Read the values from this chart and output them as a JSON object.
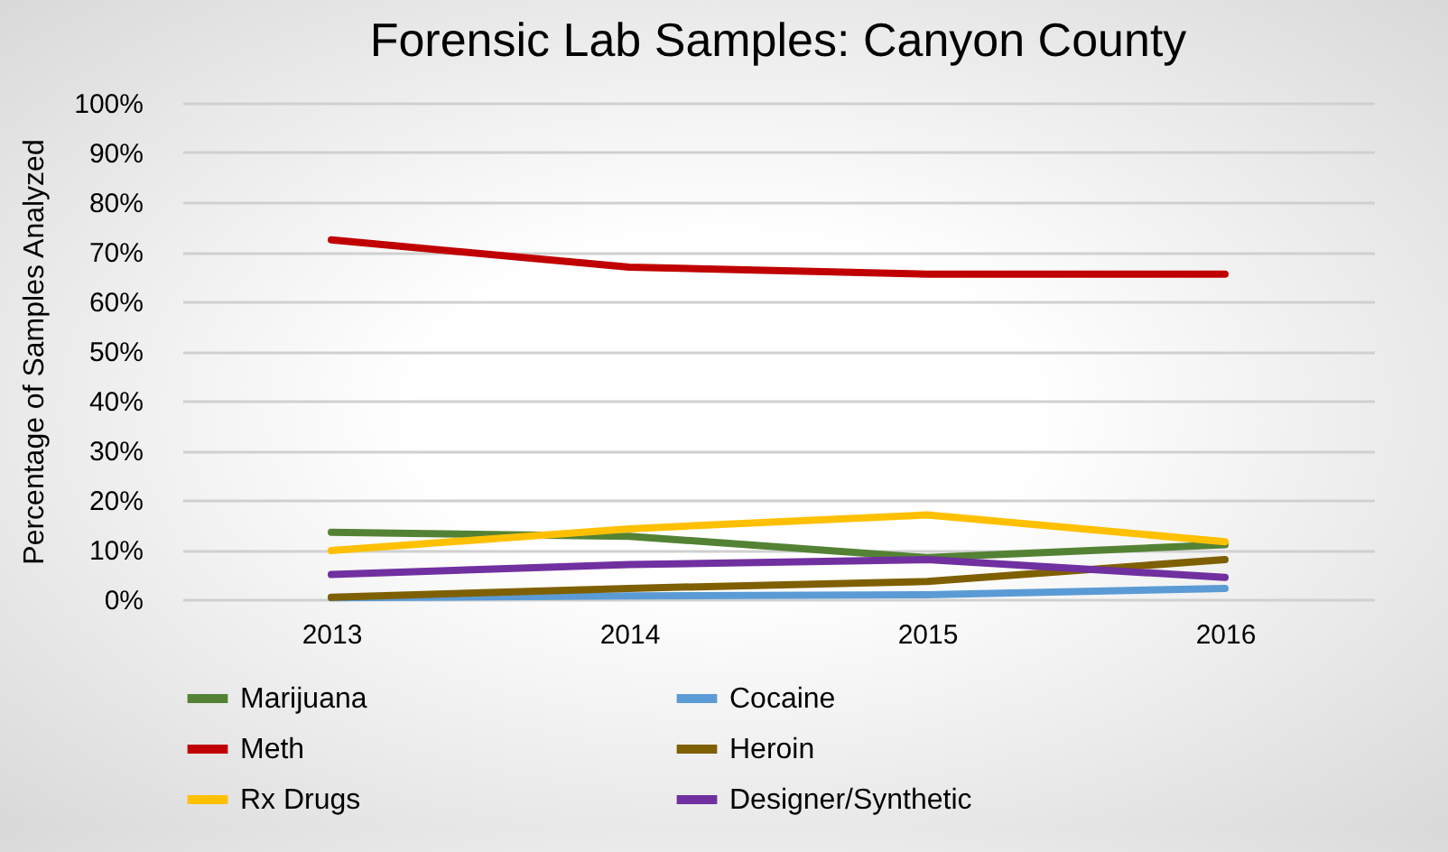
{
  "chart_data": {
    "type": "line",
    "title": "Forensic Lab Samples: Canyon County",
    "ylabel": "Percentage of Samples Analyzed",
    "categories": [
      "2013",
      "2014",
      "2015",
      "2016"
    ],
    "series": [
      {
        "name": "Marijuana",
        "color": "#548235",
        "values": [
          13.5,
          12.7,
          8.4,
          11
        ]
      },
      {
        "name": "Cocaine",
        "color": "#5b9bd5",
        "values": [
          0.3,
          0.7,
          0.9,
          2.2
        ]
      },
      {
        "name": "Meth",
        "color": "#c00000",
        "values": [
          72.4,
          66.9,
          65.5,
          65.5
        ]
      },
      {
        "name": "Heroin",
        "color": "#7f6000",
        "values": [
          0.4,
          2.2,
          3.6,
          8
        ]
      },
      {
        "name": "Rx Drugs",
        "color": "#ffc000",
        "values": [
          9.8,
          14.2,
          17,
          11.6
        ]
      },
      {
        "name": "Designer/Synthetic",
        "color": "#7030a0",
        "values": [
          5,
          7,
          8,
          4.4
        ]
      }
    ],
    "ylim": [
      0,
      100
    ],
    "yticks": [
      {
        "value": 0,
        "label": "0%"
      },
      {
        "value": 10,
        "label": "10%"
      },
      {
        "value": 20,
        "label": "20%"
      },
      {
        "value": 30,
        "label": "30%"
      },
      {
        "value": 40,
        "label": "40%"
      },
      {
        "value": 50,
        "label": "50%"
      },
      {
        "value": 60,
        "label": "60%"
      },
      {
        "value": 70,
        "label": "70%"
      },
      {
        "value": 80,
        "label": "80%"
      },
      {
        "value": 90,
        "label": "90%"
      },
      {
        "value": 100,
        "label": "100%"
      }
    ],
    "grid": "y",
    "legend": "bottom",
    "marker": "none",
    "line_style": "solid"
  }
}
